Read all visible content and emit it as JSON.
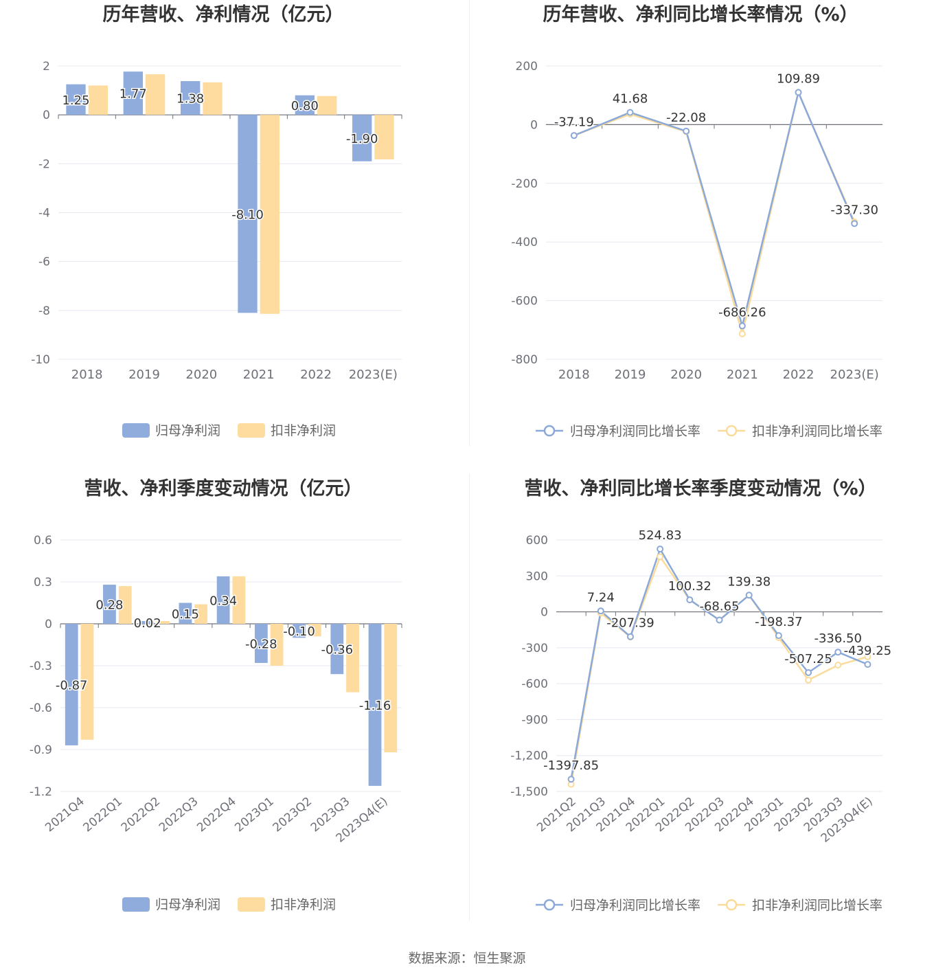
{
  "colors": {
    "blue": "#8facdc",
    "orange": "#fedc9f",
    "blue_line": "#8aa8d8",
    "orange_line": "#fbdb9a"
  },
  "chart_data": [
    {
      "type": "bar",
      "title": "历年营收、净利情况（亿元）",
      "categories": [
        "2018",
        "2019",
        "2020",
        "2021",
        "2022",
        "2023(E)"
      ],
      "ylim": [
        -10,
        2
      ],
      "yticks": [
        "2",
        "0",
        "-2",
        "-4",
        "-6",
        "-8",
        "-10"
      ],
      "series": [
        {
          "name": "归母净利润",
          "values": [
            1.25,
            1.77,
            1.38,
            -8.1,
            0.8,
            -1.9
          ],
          "labels": [
            "1.25",
            "1.77",
            "1.38",
            "-8.10",
            "0.80",
            "-1.90"
          ]
        },
        {
          "name": "扣非净利润",
          "values": [
            1.2,
            1.66,
            1.33,
            -8.14,
            0.77,
            -1.82
          ]
        }
      ],
      "legend": "bottom-center"
    },
    {
      "type": "line",
      "title": "历年营收、净利同比增长率情况（%）",
      "categories": [
        "2018",
        "2019",
        "2020",
        "2021",
        "2022",
        "2023(E)"
      ],
      "ylim": [
        -800,
        200
      ],
      "yticks": [
        "200",
        "0",
        "-200",
        "-400",
        "-600",
        "-800"
      ],
      "series": [
        {
          "name": "归母净利润同比增长率",
          "values": [
            -37.19,
            41.68,
            -22.08,
            -686.26,
            109.89,
            -337.3
          ],
          "labels": [
            "-37.19",
            "41.68",
            "-22.08",
            "-686.26",
            "109.89",
            "-337.30"
          ]
        },
        {
          "name": "扣非净利润同比增长率",
          "values": [
            -37,
            36,
            -24,
            -713,
            110,
            -332
          ]
        }
      ],
      "legend": "bottom-center"
    },
    {
      "type": "bar",
      "title": "营收、净利季度变动情况（亿元）",
      "categories": [
        "2021Q4",
        "2022Q1",
        "2022Q2",
        "2022Q3",
        "2022Q4",
        "2023Q1",
        "2023Q2",
        "2023Q3",
        "2023Q4(E)"
      ],
      "ylim": [
        -1.2,
        0.6
      ],
      "yticks": [
        "0.6",
        "0.3",
        "0",
        "-0.3",
        "-0.6",
        "-0.9",
        "-1.2"
      ],
      "series": [
        {
          "name": "归母净利润",
          "values": [
            -0.87,
            0.28,
            0.02,
            0.15,
            0.34,
            -0.28,
            -0.1,
            -0.36,
            -1.16
          ],
          "labels": [
            "-0.87",
            "0.28",
            "0.02",
            "0.15",
            "0.34",
            "-0.28",
            "-0.10",
            "-0.36",
            "-1.16"
          ]
        },
        {
          "name": "扣非净利润",
          "values": [
            -0.83,
            0.27,
            0.02,
            0.14,
            0.34,
            -0.3,
            -0.09,
            -0.49,
            -0.92
          ]
        }
      ],
      "legend": "bottom-center"
    },
    {
      "type": "line",
      "title": "营收、净利同比增长率季度变动情况（%）",
      "categories": [
        "2021Q2",
        "2021Q3",
        "2021Q4",
        "2022Q1",
        "2022Q2",
        "2022Q3",
        "2022Q4",
        "2023Q1",
        "2023Q2",
        "2023Q3",
        "2023Q4(E)"
      ],
      "ylim": [
        -1500,
        600
      ],
      "yticks": [
        "600",
        "300",
        "0",
        "-300",
        "-600",
        "-900",
        "-1,200",
        "-1,500"
      ],
      "series": [
        {
          "name": "归母净利润同比增长率",
          "values": [
            -1397.85,
            7.24,
            -207.39,
            524.83,
            100.32,
            -68.65,
            139.38,
            -198.37,
            -507.25,
            -336.5,
            -439.25
          ],
          "labels": [
            "-1397.85",
            "7.24",
            "-207.39",
            "524.83",
            "100.32",
            "-68.65",
            "139.38",
            "-198.37",
            "-507.25",
            "-336.50",
            "-439.25"
          ]
        },
        {
          "name": "扣非净利润同比增长率",
          "values": [
            -1440,
            -10,
            -210,
            460,
            100,
            -68,
            139,
            -215,
            -570,
            -445,
            -375
          ]
        }
      ],
      "legend": "bottom-center"
    }
  ],
  "footer": {
    "source": "数据来源：恒生聚源"
  }
}
